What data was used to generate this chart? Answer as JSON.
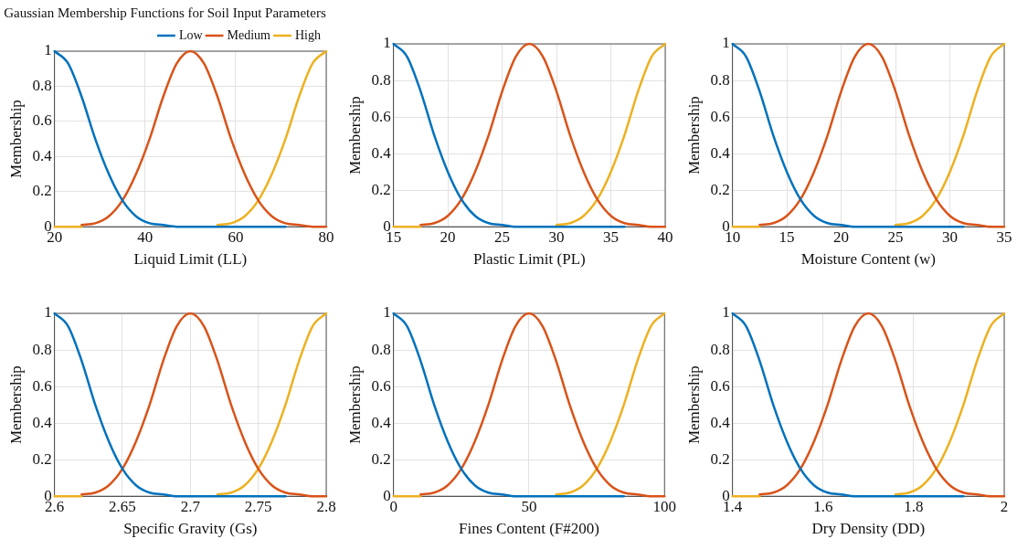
{
  "chart_data": [
    {
      "type": "line",
      "title": "Gaussian Membership Functions for Soil Input Parameters",
      "xlabel": "Liquid Limit (LL)",
      "ylabel": "Membership",
      "x": [
        20,
        23,
        26,
        29,
        32,
        35,
        38,
        41,
        44,
        47,
        50,
        53,
        56,
        59,
        62,
        65,
        68,
        71,
        74,
        77,
        80
      ],
      "xlim": [
        20,
        80
      ],
      "xticks": [
        20,
        40,
        60,
        80
      ],
      "ylim": [
        0,
        1
      ],
      "yticks": [
        0,
        0.2,
        0.4,
        0.6,
        0.8,
        1
      ],
      "grid": true,
      "legend": "top right",
      "marker": "none",
      "line_style": "solid",
      "series": [
        {
          "name": "Low",
          "color": "#0072bd",
          "values": [
            1,
            0.93,
            0.74,
            0.5,
            0.3,
            0.15,
            0.06,
            0.02,
            0.01,
            0,
            0,
            0,
            0,
            0,
            0,
            0,
            0,
            0,
            null,
            null,
            null
          ]
        },
        {
          "name": "Medium",
          "color": "#d95319",
          "values": [
            null,
            null,
            0.01,
            0.02,
            0.06,
            0.15,
            0.3,
            0.5,
            0.74,
            0.93,
            1,
            0.93,
            0.74,
            0.5,
            0.3,
            0.15,
            0.06,
            0.02,
            0.01,
            0,
            0
          ]
        },
        {
          "name": "High",
          "color": "#edb120",
          "values": [
            0,
            0,
            0,
            null,
            null,
            null,
            null,
            null,
            null,
            null,
            null,
            null,
            0.01,
            0.02,
            0.06,
            0.15,
            0.3,
            0.5,
            0.74,
            0.93,
            1
          ]
        }
      ]
    },
    {
      "type": "line",
      "xlabel": "Plastic Limit (PL)",
      "ylabel": "Membership",
      "x": [
        15,
        16.25,
        17.5,
        18.75,
        20,
        21.25,
        22.5,
        23.75,
        25,
        26.25,
        27.5,
        28.75,
        30,
        31.25,
        32.5,
        33.75,
        35,
        36.25,
        37.5,
        38.75,
        40
      ],
      "xlim": [
        15,
        40
      ],
      "xticks": [
        15,
        20,
        25,
        30,
        35,
        40
      ],
      "ylim": [
        0,
        1
      ],
      "yticks": [
        0,
        0.2,
        0.4,
        0.6,
        0.8,
        1
      ],
      "grid": true,
      "marker": "none",
      "line_style": "solid",
      "series": [
        {
          "color": "#0072bd",
          "values": [
            1,
            0.93,
            0.74,
            0.5,
            0.3,
            0.15,
            0.06,
            0.02,
            0.01,
            0,
            0,
            0,
            0,
            0,
            0,
            0,
            0,
            0,
            null,
            null,
            null
          ]
        },
        {
          "color": "#d95319",
          "values": [
            null,
            null,
            0.01,
            0.02,
            0.06,
            0.15,
            0.3,
            0.5,
            0.74,
            0.93,
            1,
            0.93,
            0.74,
            0.5,
            0.3,
            0.15,
            0.06,
            0.02,
            0.01,
            0,
            0
          ]
        },
        {
          "color": "#edb120",
          "values": [
            0,
            0,
            0,
            null,
            null,
            null,
            null,
            null,
            null,
            null,
            null,
            null,
            0.01,
            0.02,
            0.06,
            0.15,
            0.3,
            0.5,
            0.74,
            0.93,
            1
          ]
        }
      ]
    },
    {
      "type": "line",
      "xlabel": "Moisture Content (w)",
      "ylabel": "Membership",
      "x": [
        10,
        11.25,
        12.5,
        13.75,
        15,
        16.25,
        17.5,
        18.75,
        20,
        21.25,
        22.5,
        23.75,
        25,
        26.25,
        27.5,
        28.75,
        30,
        31.25,
        32.5,
        33.75,
        35
      ],
      "xlim": [
        10,
        35
      ],
      "xticks": [
        10,
        15,
        20,
        25,
        30,
        35
      ],
      "ylim": [
        0,
        1
      ],
      "yticks": [
        0,
        0.2,
        0.4,
        0.6,
        0.8,
        1
      ],
      "grid": true,
      "marker": "none",
      "line_style": "solid",
      "series": [
        {
          "color": "#0072bd",
          "values": [
            1,
            0.93,
            0.74,
            0.5,
            0.3,
            0.15,
            0.06,
            0.02,
            0.01,
            0,
            0,
            0,
            0,
            0,
            0,
            0,
            0,
            0,
            null,
            null,
            null
          ]
        },
        {
          "color": "#d95319",
          "values": [
            null,
            null,
            0.01,
            0.02,
            0.06,
            0.15,
            0.3,
            0.5,
            0.74,
            0.93,
            1,
            0.93,
            0.74,
            0.5,
            0.3,
            0.15,
            0.06,
            0.02,
            0.01,
            0,
            0
          ]
        },
        {
          "color": "#edb120",
          "values": [
            0,
            0,
            0,
            null,
            null,
            null,
            null,
            null,
            null,
            null,
            null,
            null,
            0.01,
            0.02,
            0.06,
            0.15,
            0.3,
            0.5,
            0.74,
            0.93,
            1
          ]
        }
      ]
    },
    {
      "type": "line",
      "xlabel": "Specific Gravity (Gs)",
      "ylabel": "Membership",
      "x": [
        2.6,
        2.61,
        2.62,
        2.63,
        2.64,
        2.65,
        2.66,
        2.67,
        2.68,
        2.69,
        2.7,
        2.71,
        2.72,
        2.73,
        2.74,
        2.75,
        2.76,
        2.77,
        2.78,
        2.79,
        2.8
      ],
      "xlim": [
        2.6,
        2.8
      ],
      "xticks": [
        2.6,
        2.65,
        2.7,
        2.75,
        2.8
      ],
      "ylim": [
        0,
        1
      ],
      "yticks": [
        0,
        0.2,
        0.4,
        0.6,
        0.8,
        1
      ],
      "grid": true,
      "marker": "none",
      "line_style": "solid",
      "series": [
        {
          "color": "#0072bd",
          "values": [
            1,
            0.93,
            0.74,
            0.5,
            0.3,
            0.15,
            0.06,
            0.02,
            0.01,
            0,
            0,
            0,
            0,
            0,
            0,
            0,
            0,
            0,
            null,
            null,
            null
          ]
        },
        {
          "color": "#d95319",
          "values": [
            null,
            null,
            0.01,
            0.02,
            0.06,
            0.15,
            0.3,
            0.5,
            0.74,
            0.93,
            1,
            0.93,
            0.74,
            0.5,
            0.3,
            0.15,
            0.06,
            0.02,
            0.01,
            0,
            0
          ]
        },
        {
          "color": "#edb120",
          "values": [
            0,
            0,
            0,
            null,
            null,
            null,
            null,
            null,
            null,
            null,
            null,
            null,
            0.01,
            0.02,
            0.06,
            0.15,
            0.3,
            0.5,
            0.74,
            0.93,
            1
          ]
        }
      ]
    },
    {
      "type": "line",
      "xlabel": "Fines Content (F#200)",
      "ylabel": "Membership",
      "x": [
        0,
        5,
        10,
        15,
        20,
        25,
        30,
        35,
        40,
        45,
        50,
        55,
        60,
        65,
        70,
        75,
        80,
        85,
        90,
        95,
        100
      ],
      "xlim": [
        0,
        100
      ],
      "xticks": [
        0,
        50,
        100
      ],
      "ylim": [
        0,
        1
      ],
      "yticks": [
        0,
        0.2,
        0.4,
        0.6,
        0.8,
        1
      ],
      "grid": true,
      "marker": "none",
      "line_style": "solid",
      "series": [
        {
          "color": "#0072bd",
          "values": [
            1,
            0.93,
            0.74,
            0.5,
            0.3,
            0.15,
            0.06,
            0.02,
            0.01,
            0,
            0,
            0,
            0,
            0,
            0,
            0,
            0,
            0,
            null,
            null,
            null
          ]
        },
        {
          "color": "#d95319",
          "values": [
            null,
            null,
            0.01,
            0.02,
            0.06,
            0.15,
            0.3,
            0.5,
            0.74,
            0.93,
            1,
            0.93,
            0.74,
            0.5,
            0.3,
            0.15,
            0.06,
            0.02,
            0.01,
            0,
            0
          ]
        },
        {
          "color": "#edb120",
          "values": [
            0,
            0,
            0,
            null,
            null,
            null,
            null,
            null,
            null,
            null,
            null,
            null,
            0.01,
            0.02,
            0.06,
            0.15,
            0.3,
            0.5,
            0.74,
            0.93,
            1
          ]
        }
      ]
    },
    {
      "type": "line",
      "xlabel": "Dry Density (DD)",
      "ylabel": "Membership",
      "x": [
        1.4,
        1.43,
        1.46,
        1.49,
        1.52,
        1.55,
        1.58,
        1.61,
        1.64,
        1.67,
        1.7,
        1.73,
        1.76,
        1.79,
        1.82,
        1.85,
        1.88,
        1.91,
        1.94,
        1.97,
        2
      ],
      "xlim": [
        1.4,
        2
      ],
      "xticks": [
        1.4,
        1.6,
        1.8,
        2
      ],
      "ylim": [
        0,
        1
      ],
      "yticks": [
        0,
        0.2,
        0.4,
        0.6,
        0.8,
        1
      ],
      "grid": true,
      "marker": "none",
      "line_style": "solid",
      "series": [
        {
          "color": "#0072bd",
          "values": [
            1,
            0.93,
            0.74,
            0.5,
            0.3,
            0.15,
            0.06,
            0.02,
            0.01,
            0,
            0,
            0,
            0,
            0,
            0,
            0,
            0,
            0,
            null,
            null,
            null
          ]
        },
        {
          "color": "#d95319",
          "values": [
            null,
            null,
            0.01,
            0.02,
            0.06,
            0.15,
            0.3,
            0.5,
            0.74,
            0.93,
            1,
            0.93,
            0.74,
            0.5,
            0.3,
            0.15,
            0.06,
            0.02,
            0.01,
            0,
            0
          ]
        },
        {
          "color": "#edb120",
          "values": [
            0,
            0,
            0,
            null,
            null,
            null,
            null,
            null,
            null,
            null,
            null,
            null,
            0.01,
            0.02,
            0.06,
            0.15,
            0.3,
            0.5,
            0.74,
            0.93,
            1
          ]
        }
      ]
    }
  ]
}
